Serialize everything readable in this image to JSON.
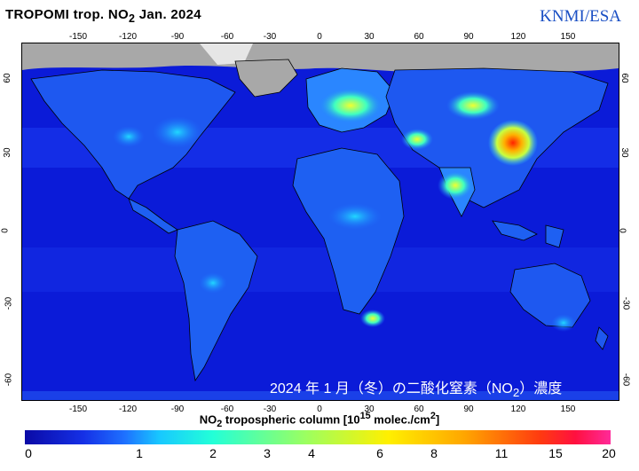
{
  "header": {
    "title_part1": "TROPOMI trop. NO",
    "title_sub": "2",
    "title_part2": "  Jan. 2024",
    "credit": "KNMI/ESA"
  },
  "axes": {
    "top_ticks": [
      "-150",
      "-120",
      "-90",
      "-60",
      "-30",
      "0",
      "30",
      "60",
      "90",
      "120",
      "150"
    ],
    "bottom_ticks": [
      "-150",
      "-120",
      "-90",
      "-60",
      "-30",
      "0",
      "30",
      "60",
      "90",
      "120",
      "150"
    ],
    "left_ticks": [
      "60",
      "30",
      "0",
      "-30",
      "-60"
    ],
    "right_ticks": [
      "60",
      "30",
      "0",
      "-30",
      "-60"
    ]
  },
  "overlay_text": {
    "before": "2024 年 1 月（冬）の二酸化窒素（NO",
    "sub": "2",
    "after": "）濃度"
  },
  "colorbar": {
    "label_a": "NO",
    "label_a_sub": "2",
    "label_b": " tropospheric column [10",
    "label_b_sup": "15",
    "label_c": " molec./cm",
    "label_c_sup": "2",
    "label_d": "]",
    "ticks": [
      "0",
      "1",
      "2",
      "3",
      "4",
      "6",
      "8",
      "11",
      "15",
      "20"
    ]
  },
  "colors": {
    "ocean_background": "#0b1bd8",
    "no_data": "#a8a8a8",
    "credit": "#1a4fc4"
  }
}
